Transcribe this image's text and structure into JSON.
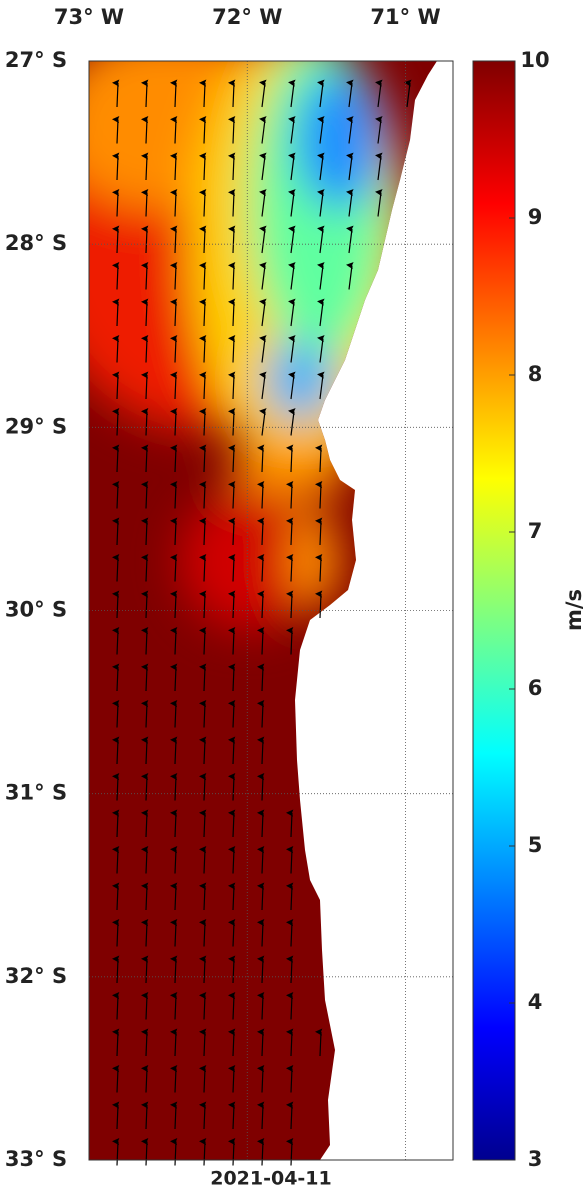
{
  "map": {
    "date": "2021-04-11",
    "xlim": [
      -73,
      -70.7
    ],
    "ylim": [
      -27,
      -33
    ],
    "lon_ticks": [
      {
        "value": -73,
        "label": "73° W"
      },
      {
        "value": -72,
        "label": "72° W"
      },
      {
        "value": -71,
        "label": "71° W"
      }
    ],
    "lat_ticks": [
      {
        "value": -27,
        "label": "27° S"
      },
      {
        "value": -28,
        "label": "28° S"
      },
      {
        "value": -29,
        "label": "29° S"
      },
      {
        "value": -30,
        "label": "30° S"
      },
      {
        "value": -31,
        "label": "31° S"
      },
      {
        "value": -32,
        "label": "32° S"
      },
      {
        "value": -33,
        "label": "33° S"
      }
    ],
    "colorbar": {
      "unit": "m/s",
      "lim": [
        3,
        10
      ],
      "ticks": [
        3,
        4,
        5,
        6,
        7,
        8,
        9,
        10
      ]
    }
  }
}
